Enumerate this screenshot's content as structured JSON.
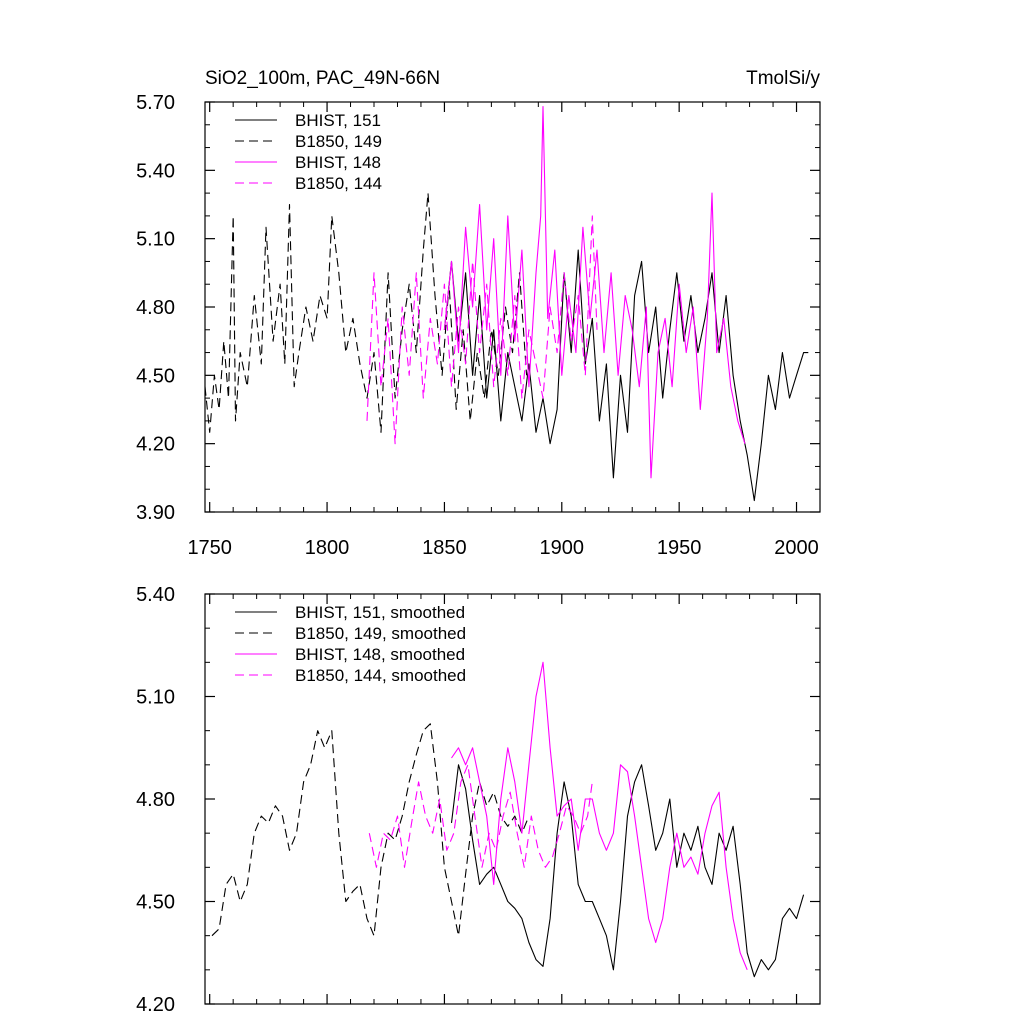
{
  "chart_data": [
    {
      "type": "line",
      "title_left": "SiO2_100m, PAC_49N-66N",
      "title_right": "TmolSi/y",
      "xlabel": "",
      "ylabel": "",
      "xlim": [
        1748,
        2010
      ],
      "ylim": [
        3.9,
        5.7
      ],
      "x_ticks": [
        1750,
        1800,
        1850,
        1900,
        1950,
        2000
      ],
      "x_tick_labels": [
        "1750",
        "1800",
        "1850",
        "1900",
        "1950",
        "2000"
      ],
      "y_ticks": [
        3.9,
        4.2,
        4.5,
        4.8,
        5.1,
        5.4,
        5.7
      ],
      "y_tick_labels": [
        "3.90",
        "4.20",
        "4.50",
        "4.80",
        "5.10",
        "5.40",
        "5.70"
      ],
      "legend_position": "top-left",
      "series": [
        {
          "name": "BHIST, 151",
          "color": "#000000",
          "dash": "solid",
          "x": [
            1850,
            1853,
            1856,
            1859,
            1862,
            1865,
            1868,
            1871,
            1874,
            1877,
            1880,
            1883,
            1886,
            1889,
            1892,
            1895,
            1898,
            1901,
            1904,
            1907,
            1910,
            1913,
            1916,
            1919,
            1922,
            1925,
            1928,
            1931,
            1934,
            1937,
            1940,
            1943,
            1946,
            1949,
            1952,
            1955,
            1958,
            1961,
            1964,
            1967,
            1970,
            1973,
            1976,
            1979,
            1982,
            1985,
            1988,
            1991,
            1994,
            1997,
            2000,
            2003,
            2005
          ],
          "y": [
            4.7,
            5.0,
            4.65,
            4.95,
            4.5,
            4.85,
            4.4,
            4.7,
            4.3,
            4.6,
            4.45,
            4.3,
            4.55,
            4.25,
            4.4,
            4.2,
            4.35,
            4.95,
            4.6,
            5.05,
            4.55,
            4.75,
            4.3,
            4.55,
            4.05,
            4.5,
            4.25,
            4.85,
            5.0,
            4.6,
            4.8,
            4.4,
            4.7,
            4.95,
            4.65,
            4.85,
            4.6,
            4.75,
            4.95,
            4.6,
            4.85,
            4.5,
            4.3,
            4.15,
            3.95,
            4.2,
            4.5,
            4.35,
            4.6,
            4.4,
            4.5,
            4.6,
            4.6
          ]
        },
        {
          "name": "B1850, 149",
          "color": "#000000",
          "dash": "dashed",
          "x": [
            1748,
            1750,
            1752,
            1754,
            1756,
            1758,
            1760,
            1761,
            1763,
            1766,
            1769,
            1772,
            1774,
            1777,
            1780,
            1782,
            1784,
            1786,
            1788,
            1791,
            1794,
            1797,
            1800,
            1802,
            1805,
            1808,
            1811,
            1814,
            1817,
            1820,
            1823,
            1826,
            1829,
            1832,
            1835,
            1838,
            1841,
            1843,
            1846,
            1849,
            1852,
            1855,
            1858,
            1861,
            1864,
            1867,
            1870,
            1873,
            1876,
            1879,
            1882,
            1885
          ],
          "y": [
            4.45,
            4.25,
            4.5,
            4.35,
            4.65,
            4.4,
            5.2,
            4.3,
            4.6,
            4.45,
            4.85,
            4.55,
            5.15,
            4.65,
            4.9,
            4.55,
            5.25,
            4.45,
            4.6,
            4.8,
            4.65,
            4.85,
            4.75,
            5.2,
            4.95,
            4.6,
            4.75,
            4.55,
            4.4,
            4.6,
            4.25,
            4.95,
            4.4,
            4.7,
            4.9,
            4.6,
            5.05,
            5.3,
            4.85,
            4.5,
            4.9,
            4.35,
            4.7,
            4.3,
            4.6,
            4.4,
            4.7,
            4.5,
            4.8,
            4.6,
            4.95,
            4.5
          ]
        },
        {
          "name": "BHIST, 148",
          "color": "#ff00ff",
          "dash": "solid",
          "x": [
            1850,
            1853,
            1856,
            1859,
            1862,
            1865,
            1868,
            1871,
            1874,
            1877,
            1880,
            1883,
            1886,
            1889,
            1891,
            1892,
            1894,
            1897,
            1900,
            1903,
            1906,
            1909,
            1912,
            1915,
            1918,
            1921,
            1924,
            1927,
            1930,
            1933,
            1936,
            1938,
            1941,
            1944,
            1947,
            1950,
            1953,
            1956,
            1959,
            1962,
            1964,
            1966,
            1969,
            1972,
            1975,
            1978
          ],
          "y": [
            4.7,
            5.0,
            4.6,
            5.15,
            4.8,
            5.25,
            4.7,
            5.1,
            4.5,
            5.2,
            4.65,
            5.05,
            4.45,
            4.95,
            5.2,
            5.68,
            4.75,
            5.05,
            4.5,
            4.85,
            4.6,
            5.15,
            4.75,
            5.05,
            4.6,
            4.95,
            4.5,
            4.85,
            4.7,
            4.45,
            4.8,
            4.05,
            4.6,
            4.75,
            4.45,
            4.9,
            4.6,
            4.8,
            4.35,
            4.75,
            5.3,
            4.6,
            4.75,
            4.45,
            4.3,
            4.2
          ]
        },
        {
          "name": "B1850, 144",
          "color": "#ff00ff",
          "dash": "dashed",
          "x": [
            1817,
            1820,
            1823,
            1826,
            1829,
            1832,
            1835,
            1838,
            1841,
            1844,
            1847,
            1850,
            1853,
            1856,
            1859,
            1862,
            1865,
            1868,
            1871,
            1874,
            1877,
            1880,
            1883,
            1886,
            1889,
            1892,
            1895,
            1898,
            1901,
            1904,
            1907,
            1910,
            1913,
            1915
          ],
          "y": [
            4.3,
            4.95,
            4.45,
            4.75,
            4.2,
            4.8,
            4.5,
            4.95,
            4.4,
            4.75,
            4.55,
            4.9,
            4.45,
            4.8,
            4.55,
            5.0,
            4.6,
            4.9,
            4.45,
            4.75,
            4.5,
            4.85,
            4.4,
            4.7,
            4.55,
            4.4,
            4.8,
            4.6,
            4.95,
            4.65,
            4.85,
            4.5,
            5.2,
            4.7
          ]
        }
      ]
    },
    {
      "type": "line",
      "xlabel": "",
      "ylabel": "",
      "xlim": [
        1748,
        2010
      ],
      "ylim": [
        4.2,
        5.4
      ],
      "x_ticks": [
        1750,
        1800,
        1850,
        1900,
        1950,
        2000
      ],
      "y_ticks": [
        4.2,
        4.5,
        4.8,
        5.1,
        5.4
      ],
      "y_tick_labels": [
        "4.20",
        "4.50",
        "4.80",
        "5.10",
        "5.40"
      ],
      "legend_position": "top-left",
      "series": [
        {
          "name": "BHIST, 151, smoothed",
          "color": "#000000",
          "dash": "solid",
          "x": [
            1853,
            1856,
            1859,
            1862,
            1865,
            1868,
            1871,
            1874,
            1877,
            1880,
            1883,
            1886,
            1889,
            1892,
            1895,
            1898,
            1901,
            1904,
            1907,
            1910,
            1913,
            1916,
            1919,
            1922,
            1925,
            1928,
            1931,
            1934,
            1937,
            1940,
            1943,
            1946,
            1949,
            1952,
            1955,
            1958,
            1961,
            1964,
            1967,
            1970,
            1973,
            1976,
            1979,
            1982,
            1985,
            1988,
            1991,
            1994,
            1997,
            2000,
            2003
          ],
          "y": [
            4.73,
            4.9,
            4.83,
            4.68,
            4.55,
            4.58,
            4.6,
            4.55,
            4.5,
            4.48,
            4.45,
            4.38,
            4.33,
            4.31,
            4.45,
            4.7,
            4.85,
            4.75,
            4.55,
            4.5,
            4.5,
            4.45,
            4.4,
            4.3,
            4.5,
            4.75,
            4.85,
            4.9,
            4.78,
            4.65,
            4.7,
            4.8,
            4.6,
            4.7,
            4.65,
            4.72,
            4.6,
            4.55,
            4.7,
            4.65,
            4.72,
            4.55,
            4.35,
            4.28,
            4.33,
            4.3,
            4.33,
            4.45,
            4.48,
            4.45,
            4.52
          ]
        },
        {
          "name": "B1850, 149, smoothed",
          "color": "#000000",
          "dash": "dashed",
          "x": [
            1751,
            1754,
            1757,
            1760,
            1763,
            1766,
            1769,
            1772,
            1775,
            1778,
            1781,
            1784,
            1787,
            1790,
            1793,
            1796,
            1799,
            1802,
            1805,
            1808,
            1811,
            1814,
            1817,
            1820,
            1823,
            1826,
            1829,
            1832,
            1835,
            1838,
            1841,
            1844,
            1847,
            1850,
            1853,
            1856,
            1859,
            1862,
            1865,
            1868,
            1871,
            1874,
            1877,
            1880,
            1883,
            1886
          ],
          "y": [
            4.4,
            4.42,
            4.55,
            4.58,
            4.5,
            4.55,
            4.7,
            4.75,
            4.73,
            4.78,
            4.75,
            4.65,
            4.7,
            4.85,
            4.9,
            5.0,
            4.95,
            5.0,
            4.7,
            4.5,
            4.53,
            4.55,
            4.45,
            4.4,
            4.6,
            4.7,
            4.68,
            4.75,
            4.85,
            4.93,
            5.0,
            5.02,
            4.85,
            4.6,
            4.5,
            4.4,
            4.58,
            4.75,
            4.85,
            4.78,
            4.82,
            4.75,
            4.72,
            4.75,
            4.7,
            4.75
          ]
        },
        {
          "name": "BHIST, 148, smoothed",
          "color": "#ff00ff",
          "dash": "solid",
          "x": [
            1853,
            1856,
            1859,
            1862,
            1865,
            1868,
            1871,
            1874,
            1877,
            1880,
            1883,
            1886,
            1889,
            1892,
            1895,
            1898,
            1901,
            1904,
            1907,
            1910,
            1913,
            1916,
            1919,
            1922,
            1925,
            1928,
            1931,
            1934,
            1937,
            1940,
            1943,
            1946,
            1949,
            1952,
            1955,
            1958,
            1961,
            1964,
            1967,
            1970,
            1973,
            1976,
            1979
          ],
          "y": [
            4.92,
            4.95,
            4.9,
            4.95,
            4.85,
            4.75,
            4.55,
            4.8,
            4.95,
            4.85,
            4.7,
            4.9,
            5.1,
            5.2,
            4.95,
            4.75,
            4.78,
            4.8,
            4.65,
            4.8,
            4.8,
            4.7,
            4.65,
            4.7,
            4.9,
            4.88,
            4.75,
            4.6,
            4.45,
            4.38,
            4.45,
            4.6,
            4.7,
            4.6,
            4.63,
            4.58,
            4.7,
            4.78,
            4.82,
            4.6,
            4.45,
            4.35,
            4.3
          ]
        },
        {
          "name": "B1850, 144, smoothed",
          "color": "#ff00ff",
          "dash": "dashed",
          "x": [
            1818,
            1821,
            1824,
            1827,
            1830,
            1833,
            1836,
            1839,
            1842,
            1845,
            1848,
            1851,
            1854,
            1857,
            1860,
            1863,
            1866,
            1869,
            1872,
            1875,
            1878,
            1881,
            1884,
            1887,
            1890,
            1893,
            1896,
            1899,
            1902,
            1905,
            1908,
            1911,
            1913
          ],
          "y": [
            4.7,
            4.6,
            4.7,
            4.68,
            4.75,
            4.6,
            4.73,
            4.85,
            4.75,
            4.7,
            4.8,
            4.65,
            4.7,
            4.85,
            4.9,
            4.75,
            4.6,
            4.7,
            4.65,
            4.75,
            4.82,
            4.7,
            4.6,
            4.75,
            4.65,
            4.6,
            4.63,
            4.7,
            4.78,
            4.75,
            4.7,
            4.75,
            4.85
          ]
        }
      ]
    }
  ]
}
